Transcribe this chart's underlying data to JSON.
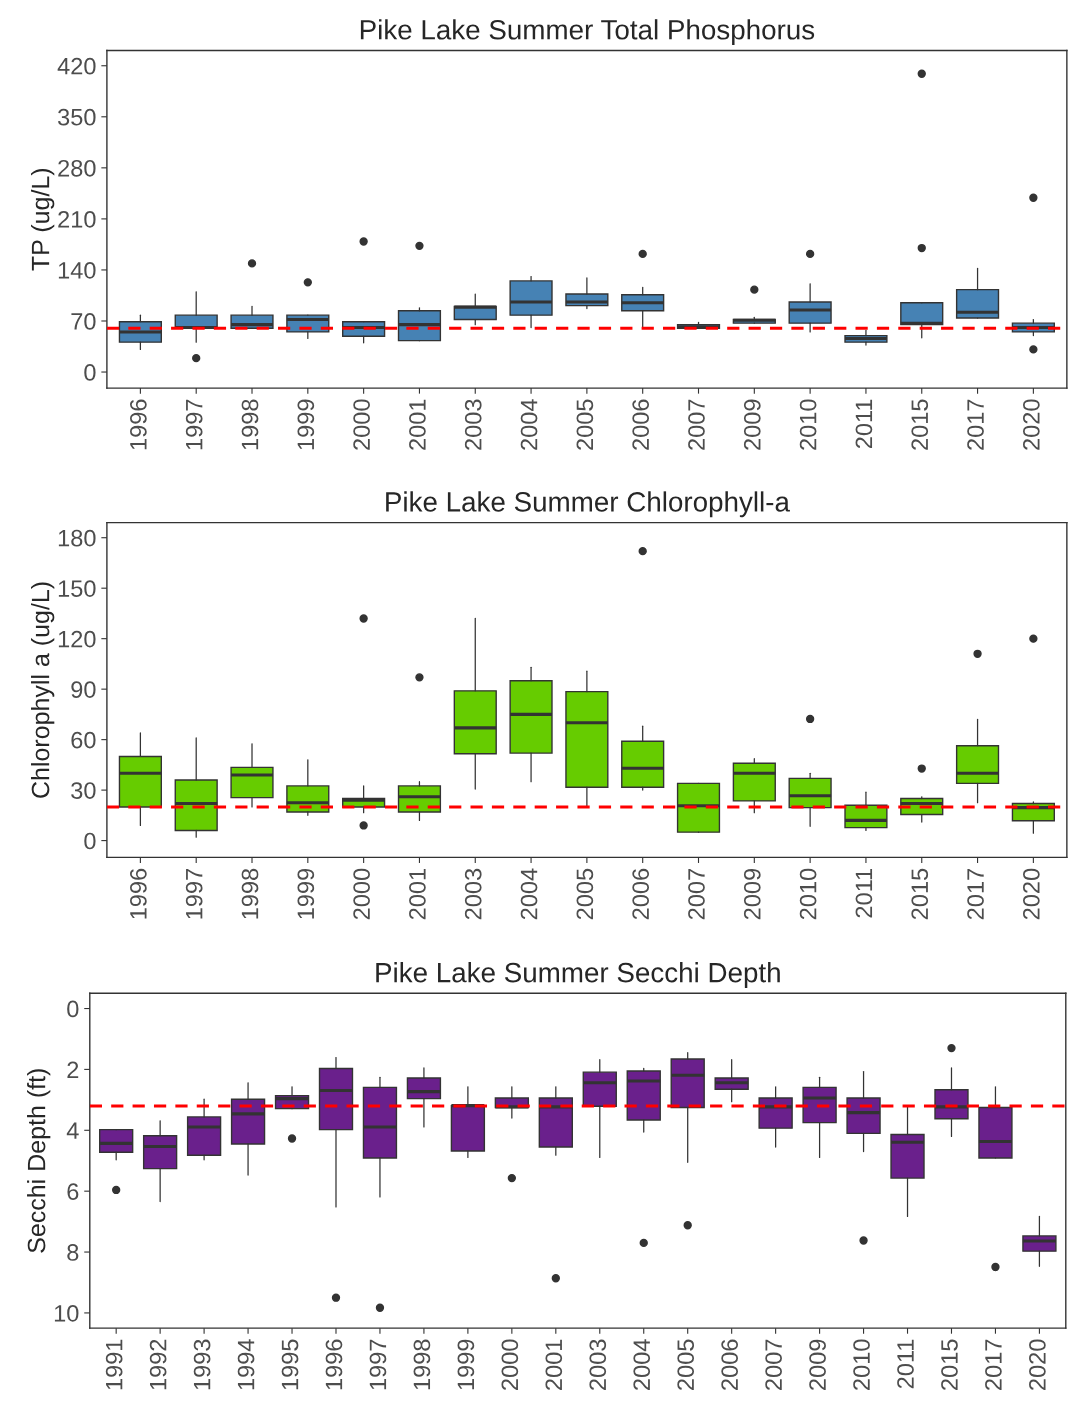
{
  "chart_data": [
    {
      "type": "box",
      "title": "Pike Lake Summer Total Phosphorus",
      "ylabel": "TP (ug/L)",
      "color": "#4682b4",
      "categories": [
        "1996",
        "1997",
        "1998",
        "1999",
        "2000",
        "2001",
        "2003",
        "2004",
        "2005",
        "2006",
        "2007",
        "2009",
        "2010",
        "2011",
        "2015",
        "2017",
        "2020"
      ],
      "boxes": [
        {
          "low": 31,
          "q1": 41,
          "median": 55,
          "q3": 69,
          "high": 78
        },
        {
          "low": 41,
          "q1": 61,
          "median": 61,
          "q3": 78,
          "high": 110,
          "outliers": [
            19
          ]
        },
        {
          "low": 60,
          "q1": 60,
          "median": 65,
          "q3": 78,
          "high": 90,
          "outliers": [
            149
          ]
        },
        {
          "low": 46,
          "q1": 55,
          "median": 72,
          "q3": 78,
          "high": 78,
          "outliers": [
            123
          ]
        },
        {
          "low": 40,
          "q1": 49,
          "median": 61,
          "q3": 69,
          "high": 69,
          "outliers": [
            179
          ]
        },
        {
          "low": 43,
          "q1": 43,
          "median": 65,
          "q3": 84,
          "high": 88,
          "outliers": [
            173
          ]
        },
        {
          "low": 65,
          "q1": 72,
          "median": 89,
          "q3": 90,
          "high": 107
        },
        {
          "low": 61,
          "q1": 78,
          "median": 96,
          "q3": 125,
          "high": 131
        },
        {
          "low": 87,
          "q1": 91,
          "median": 96,
          "q3": 107,
          "high": 129
        },
        {
          "low": 61,
          "q1": 84,
          "median": 95,
          "q3": 106,
          "high": 116,
          "outliers": [
            162
          ]
        },
        {
          "low": 60,
          "q1": 60,
          "median": 62,
          "q3": 65,
          "high": 68
        },
        {
          "low": 67,
          "q1": 67,
          "median": 71,
          "q3": 72,
          "high": 75,
          "outliers": [
            113
          ]
        },
        {
          "low": 55,
          "q1": 67,
          "median": 85,
          "q3": 96,
          "high": 121,
          "outliers": [
            162
          ]
        },
        {
          "low": 37,
          "q1": 41,
          "median": 46,
          "q3": 50,
          "high": 57
        },
        {
          "low": 47,
          "q1": 65,
          "median": 67,
          "q3": 95,
          "high": 95,
          "outliers": [
            170,
            409
          ]
        },
        {
          "low": 74,
          "q1": 74,
          "median": 82,
          "q3": 113,
          "high": 142
        },
        {
          "low": 50,
          "q1": 55,
          "median": 61,
          "q3": 67,
          "high": 72,
          "outliers": [
            239,
            31
          ]
        }
      ],
      "ylim": [
        -22,
        441
      ],
      "yticks": [
        0,
        70,
        140,
        210,
        280,
        350,
        420
      ],
      "ref_lines": [
        {
          "axis": "y",
          "value": 60,
          "color": "#ff0000",
          "line_style": "dashed"
        }
      ]
    },
    {
      "type": "box",
      "title": "Pike Lake Summer Chlorophyll-a",
      "ylabel": "Chlorophyll a (ug/L)",
      "color": "#66cc00",
      "categories": [
        "1996",
        "1997",
        "1998",
        "1999",
        "2000",
        "2001",
        "2003",
        "2004",
        "2005",
        "2006",
        "2007",
        "2009",
        "2010",
        "2011",
        "2015",
        "2017",
        "2020"
      ],
      "boxes": [
        {
          "low": 9,
          "q1": 20,
          "median": 40,
          "q3": 50,
          "high": 64
        },
        {
          "low": 2,
          "q1": 6,
          "median": 22,
          "q3": 36,
          "high": 61
        },
        {
          "low": 20,
          "q1": 25.5,
          "median": 39,
          "q3": 43.5,
          "high": 57.5
        },
        {
          "low": 15,
          "q1": 17,
          "median": 22.5,
          "q3": 32.5,
          "high": 48
        },
        {
          "low": 16.6,
          "q1": 20,
          "median": 24,
          "q3": 25,
          "high": 32.5,
          "outliers": [
            132,
            9
          ]
        },
        {
          "low": 12,
          "q1": 17,
          "median": 26,
          "q3": 32.5,
          "high": 35,
          "outliers": [
            97
          ]
        },
        {
          "low": 30.6,
          "q1": 51.6,
          "median": 67,
          "q3": 89,
          "high": 132
        },
        {
          "low": 35,
          "q1": 52,
          "median": 75,
          "q3": 95,
          "high": 103
        },
        {
          "low": 20,
          "q1": 31.7,
          "median": 70,
          "q3": 88.5,
          "high": 100.7
        },
        {
          "low": 30,
          "q1": 31.7,
          "median": 43,
          "q3": 59,
          "high": 68,
          "outliers": [
            172
          ]
        },
        {
          "low": 5,
          "q1": 5,
          "median": 20.7,
          "q3": 34,
          "high": 34
        },
        {
          "low": 16.6,
          "q1": 23.6,
          "median": 40,
          "q3": 46,
          "high": 48.7
        },
        {
          "low": 8.5,
          "q1": 19.6,
          "median": 26.6,
          "q3": 37,
          "high": 40,
          "outliers": [
            72.3
          ]
        },
        {
          "low": 6,
          "q1": 7.7,
          "median": 12,
          "q3": 21,
          "high": 28.8
        },
        {
          "low": 11,
          "q1": 15.5,
          "median": 22,
          "q3": 25,
          "high": 26,
          "outliers": [
            42.8
          ]
        },
        {
          "low": 22.5,
          "q1": 34,
          "median": 40,
          "q3": 56.4,
          "high": 72,
          "outliers": [
            111
          ]
        },
        {
          "low": 4.4,
          "q1": 11.8,
          "median": 19.6,
          "q3": 22,
          "high": 23,
          "outliers": [
            120
          ]
        }
      ],
      "ylim": [
        -10,
        189
      ],
      "yticks": [
        0,
        30,
        60,
        90,
        120,
        150,
        180
      ],
      "ref_lines": [
        {
          "axis": "y",
          "value": 20,
          "color": "#ff0000",
          "line_style": "dashed"
        }
      ]
    },
    {
      "type": "box",
      "title": "Pike Lake Summer Secchi Depth",
      "ylabel": "Secchi Depth (ft)",
      "color": "#6a208c",
      "categories": [
        "1991",
        "1992",
        "1993",
        "1994",
        "1995",
        "1996",
        "1997",
        "1998",
        "1999",
        "2000",
        "2001",
        "2003",
        "2004",
        "2005",
        "2006",
        "2007",
        "2009",
        "2010",
        "2011",
        "2015",
        "2017",
        "2020"
      ],
      "boxes": [
        {
          "low": 4.97,
          "q1": 4.72,
          "median": 4.43,
          "q3": 3.98,
          "high": 3.98,
          "outliers": [
            5.96
          ]
        },
        {
          "low": 6.34,
          "q1": 5.26,
          "median": 4.53,
          "q3": 4.18,
          "high": 3.69
        },
        {
          "low": 4.97,
          "q1": 4.82,
          "median": 3.89,
          "q3": 3.56,
          "high": 2.98
        },
        {
          "low": 5.47,
          "q1": 4.45,
          "median": 3.46,
          "q3": 2.98,
          "high": 2.44
        },
        {
          "low": 3.29,
          "q1": 3.29,
          "median": 2.96,
          "q3": 2.86,
          "high": 2.57,
          "outliers": [
            4.27
          ]
        },
        {
          "low": 6.52,
          "q1": 3.98,
          "median": 2.69,
          "q3": 1.97,
          "high": 1.61,
          "outliers": [
            9.5
          ]
        },
        {
          "low": 6.19,
          "q1": 4.91,
          "median": 3.89,
          "q3": 2.59,
          "high": 2.26,
          "outliers": [
            9.83
          ]
        },
        {
          "low": 3.89,
          "q1": 2.96,
          "median": 2.73,
          "q3": 2.28,
          "high": 1.95
        },
        {
          "low": 4.89,
          "q1": 4.68,
          "median": 3.19,
          "q3": 3.19,
          "high": 2.57
        },
        {
          "low": 3.6,
          "q1": 3.25,
          "median": 3.23,
          "q3": 2.94,
          "high": 2.57,
          "outliers": [
            5.57
          ]
        },
        {
          "low": 4.82,
          "q1": 4.55,
          "median": 3.23,
          "q3": 2.94,
          "high": 2.57,
          "outliers": [
            8.86
          ]
        },
        {
          "low": 4.89,
          "q1": 3.21,
          "median": 2.44,
          "q3": 2.09,
          "high": 1.68
        },
        {
          "low": 4.06,
          "q1": 3.66,
          "median": 2.38,
          "q3": 2.05,
          "high": 1.97,
          "outliers": [
            7.7
          ]
        },
        {
          "low": 5.05,
          "q1": 3.25,
          "median": 2.19,
          "q3": 1.66,
          "high": 1.45,
          "outliers": [
            7.12
          ]
        },
        {
          "low": 3.06,
          "q1": 2.65,
          "median": 2.44,
          "q3": 2.28,
          "high": 1.68
        },
        {
          "low": 4.55,
          "q1": 3.93,
          "median": 3.23,
          "q3": 2.94,
          "high": 2.57
        },
        {
          "low": 4.89,
          "q1": 3.75,
          "median": 2.94,
          "q3": 2.59,
          "high": 2.26
        },
        {
          "low": 4.7,
          "q1": 4.1,
          "median": 3.42,
          "q3": 2.94,
          "high": 2.07,
          "outliers": [
            7.62
          ]
        },
        {
          "low": 6.83,
          "q1": 5.57,
          "median": 4.39,
          "q3": 4.14,
          "high": 3.23
        },
        {
          "low": 4.2,
          "q1": 3.62,
          "median": 3.23,
          "q3": 2.67,
          "high": 1.95,
          "outliers": [
            1.3
          ]
        },
        {
          "low": 4.91,
          "q1": 4.91,
          "median": 4.37,
          "q3": 3.25,
          "high": 2.57,
          "outliers": [
            8.49
          ]
        },
        {
          "low": 8.47,
          "q1": 7.97,
          "median": 7.64,
          "q3": 7.47,
          "high": 6.83
        }
      ],
      "ylim": [
        10.5,
        -0.5
      ],
      "yticks": [
        0,
        2,
        4,
        6,
        8,
        10
      ],
      "ref_lines": [
        {
          "axis": "y",
          "value": 3.2,
          "color": "#ff0000",
          "line_style": "dashed"
        }
      ]
    }
  ]
}
